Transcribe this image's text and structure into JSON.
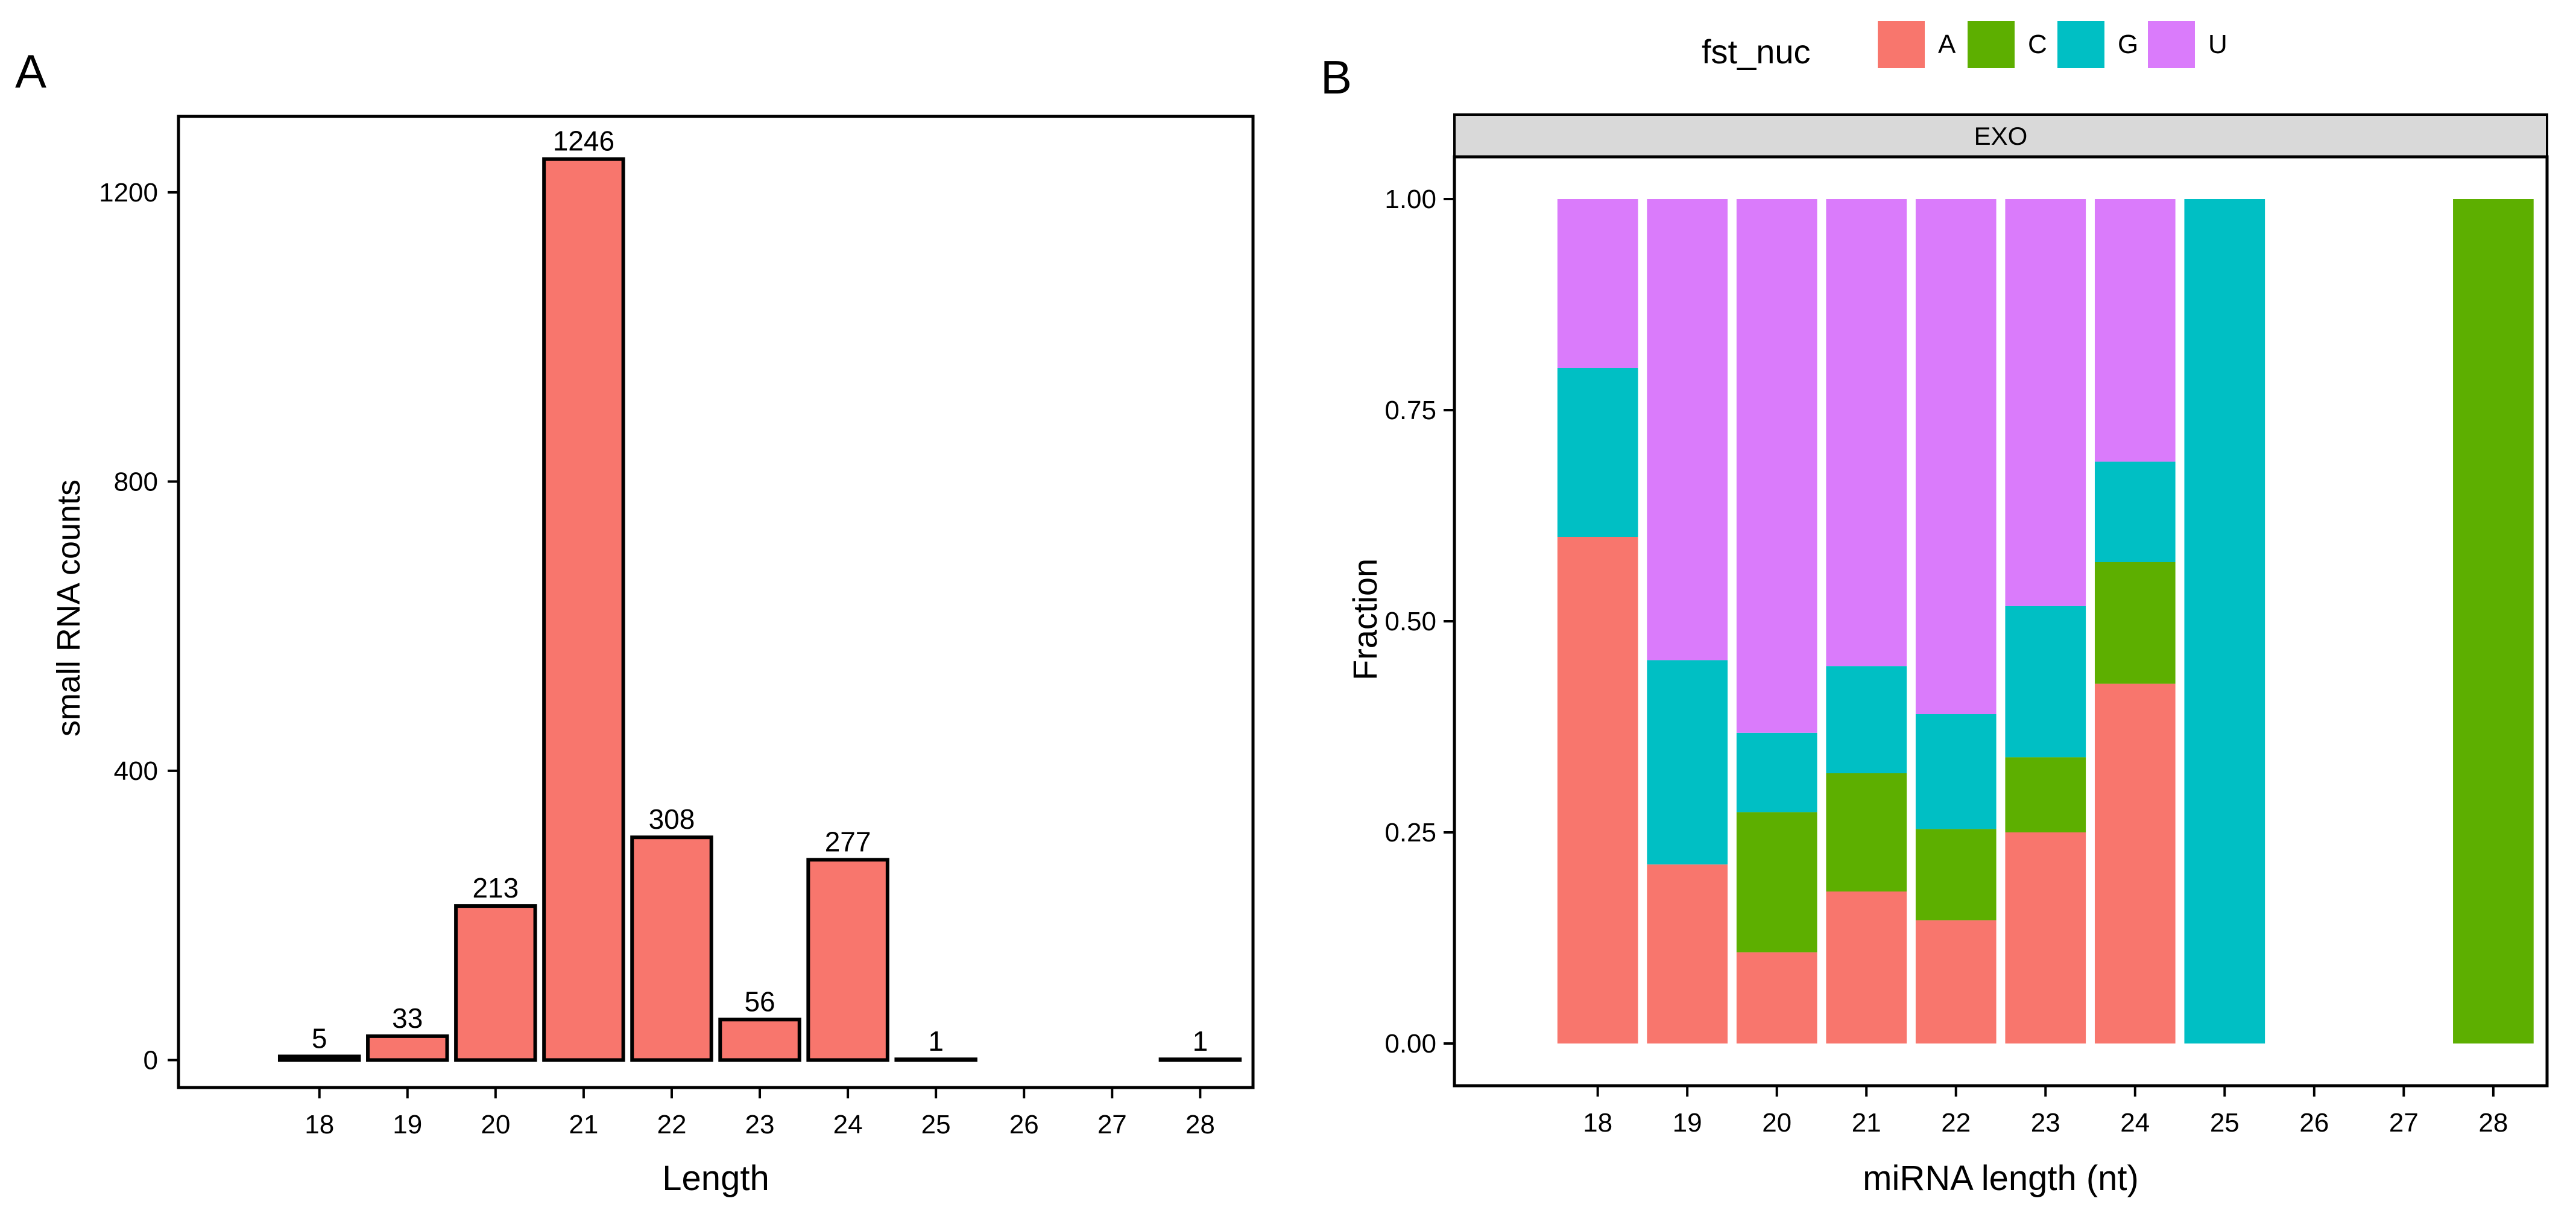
{
  "panel_labels": {
    "a": "A",
    "b": "B"
  },
  "colors": {
    "bar_fill": "#F8766D",
    "A": "#F8766D",
    "C": "#5DAF00",
    "G": "#00BFC4",
    "U": "#DA7BFB",
    "strip_fill": "#D9D9D9",
    "axis": "#000000"
  },
  "chart_data": [
    {
      "id": "A",
      "type": "bar",
      "title": "",
      "xlabel": "Length",
      "ylabel": "small RNA counts",
      "categories": [
        "18",
        "19",
        "20",
        "21",
        "22",
        "23",
        "24",
        "25",
        "26",
        "27",
        "28"
      ],
      "values": [
        5,
        33,
        213,
        1246,
        308,
        56,
        277,
        1,
        0,
        0,
        1
      ],
      "data_labels": [
        "5",
        "33",
        "213",
        "1246",
        "308",
        "56",
        "277",
        "1",
        "",
        "",
        "1"
      ],
      "yticks": [
        0,
        400,
        800,
        1200
      ],
      "ylim": [
        -38,
        1305
      ],
      "grid": false
    },
    {
      "id": "B",
      "type": "bar",
      "stacked": true,
      "facet_label": "EXO",
      "xlabel": "miRNA length (nt)",
      "ylabel": "Fraction",
      "legend_title": "fst_nuc",
      "legend_position": "top",
      "categories": [
        "18",
        "19",
        "20",
        "21",
        "22",
        "23",
        "24",
        "25",
        "26",
        "27",
        "28"
      ],
      "series": [
        {
          "name": "A",
          "values": [
            0.6,
            0.212,
            0.108,
            0.18,
            0.146,
            0.25,
            0.426,
            0,
            0,
            0,
            0
          ]
        },
        {
          "name": "C",
          "values": [
            0,
            0,
            0.166,
            0.14,
            0.108,
            0.089,
            0.144,
            0,
            0,
            0,
            1
          ]
        },
        {
          "name": "G",
          "values": [
            0.2,
            0.242,
            0.094,
            0.127,
            0.136,
            0.179,
            0.119,
            1,
            0,
            0,
            0
          ]
        },
        {
          "name": "U",
          "values": [
            0.2,
            0.546,
            0.632,
            0.553,
            0.61,
            0.482,
            0.311,
            0,
            0,
            0,
            0
          ]
        }
      ],
      "yticks": [
        "0.00",
        "0.25",
        "0.50",
        "0.75",
        "1.00"
      ],
      "ylim": [
        -0.05,
        1.05
      ],
      "grid": false
    }
  ]
}
